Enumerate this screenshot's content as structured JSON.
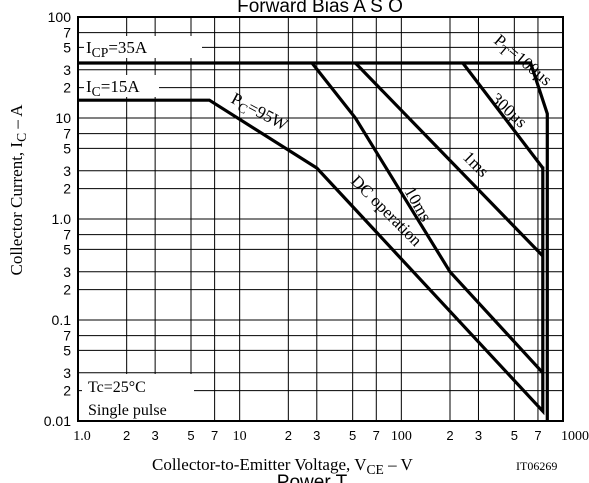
{
  "chart_data": {
    "type": "line",
    "title": "Forward Bias A S O",
    "bottom_cut_text": "Power T",
    "xlabel": {
      "main": "Collector-to-Emitter Voltage, V",
      "sub": "CE",
      "unit": "–  V"
    },
    "ylabel": {
      "main": "Collector Current, I",
      "sub": "C",
      "unit": "–  A"
    },
    "code": "IT06269",
    "x_scale": "log",
    "y_scale": "log",
    "xlim": [
      1,
      1000
    ],
    "ylim": [
      0.01,
      100
    ],
    "grid": true,
    "x_ticks": [
      {
        "v": 1,
        "t": "1.0"
      },
      {
        "v": 2,
        "t": "2"
      },
      {
        "v": 3,
        "t": "3"
      },
      {
        "v": 5,
        "t": "5"
      },
      {
        "v": 7,
        "t": "7"
      },
      {
        "v": 10,
        "t": "10"
      },
      {
        "v": 20,
        "t": "2"
      },
      {
        "v": 30,
        "t": "3"
      },
      {
        "v": 50,
        "t": "5"
      },
      {
        "v": 70,
        "t": "7"
      },
      {
        "v": 100,
        "t": "100"
      },
      {
        "v": 200,
        "t": "2"
      },
      {
        "v": 300,
        "t": "3"
      },
      {
        "v": 500,
        "t": "5"
      },
      {
        "v": 700,
        "t": "7"
      },
      {
        "v": 1000,
        "t": "1000"
      }
    ],
    "y_ticks": [
      {
        "v": 0.01,
        "t": "0.01"
      },
      {
        "v": 0.02,
        "t": "2"
      },
      {
        "v": 0.03,
        "t": "3"
      },
      {
        "v": 0.05,
        "t": "5"
      },
      {
        "v": 0.07,
        "t": "7"
      },
      {
        "v": 0.1,
        "t": "0.1"
      },
      {
        "v": 0.2,
        "t": "2"
      },
      {
        "v": 0.3,
        "t": "3"
      },
      {
        "v": 0.5,
        "t": "5"
      },
      {
        "v": 0.7,
        "t": "7"
      },
      {
        "v": 1,
        "t": "1.0"
      },
      {
        "v": 2,
        "t": "2"
      },
      {
        "v": 3,
        "t": "3"
      },
      {
        "v": 5,
        "t": "5"
      },
      {
        "v": 7,
        "t": "7"
      },
      {
        "v": 10,
        "t": "10"
      },
      {
        "v": 20,
        "t": "2"
      },
      {
        "v": 30,
        "t": "3"
      },
      {
        "v": 50,
        "t": "5"
      },
      {
        "v": 70,
        "t": "7"
      },
      {
        "v": 100,
        "t": "100"
      }
    ],
    "series": [
      {
        "name": "DC operation",
        "points": [
          [
            1,
            15
          ],
          [
            6.5,
            15
          ],
          [
            30,
            3.2
          ],
          [
            750,
            0.0125
          ],
          [
            750,
            3.3
          ]
        ]
      },
      {
        "name": "10ms",
        "points": [
          [
            28,
            35
          ],
          [
            52,
            10
          ],
          [
            200,
            0.3
          ],
          [
            750,
            0.03
          ]
        ]
      },
      {
        "name": "1ms",
        "points": [
          [
            52,
            35
          ],
          [
            750,
            0.43
          ]
        ]
      },
      {
        "name": "300µs",
        "points": [
          [
            240,
            35
          ],
          [
            750,
            3.2
          ]
        ]
      },
      {
        "name": "100µs",
        "points": [
          [
            1,
            35
          ],
          [
            630,
            35
          ],
          [
            800,
            11
          ],
          [
            800,
            0.01
          ]
        ]
      }
    ],
    "annotations": [
      {
        "id": "icp",
        "text": "I",
        "sub": "CP",
        "rest": "=35A"
      },
      {
        "id": "ic",
        "text": "I",
        "sub": "C",
        "rest": "=15A"
      },
      {
        "id": "pc",
        "text": "P",
        "sub": "C",
        "rest": "=95W"
      },
      {
        "id": "pt",
        "text": "P",
        "sub": "T",
        "rest": "=100µs"
      },
      {
        "id": "t300",
        "text": "300µs"
      },
      {
        "id": "t1ms",
        "text": "1ms"
      },
      {
        "id": "t10ms",
        "text": "10ms"
      },
      {
        "id": "dc",
        "text": "DC operation"
      }
    ],
    "conditions": [
      "Tc=25°C",
      "Single pulse"
    ]
  }
}
